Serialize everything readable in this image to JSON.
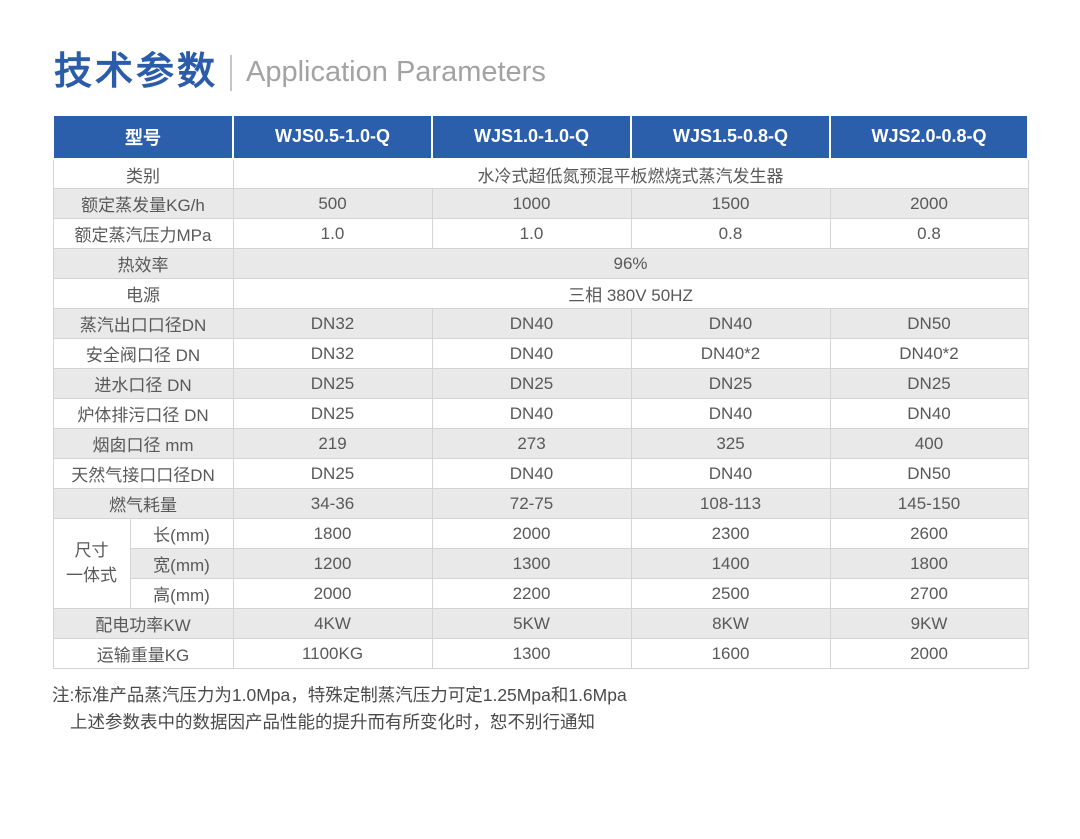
{
  "page": {
    "title_cn": "技术参数",
    "title_en": "Application Parameters"
  },
  "table": {
    "header": [
      "型号",
      "WJS0.5-1.0-Q",
      "WJS1.0-1.0-Q",
      "WJS1.5-0.8-Q",
      "WJS2.0-0.8-Q"
    ],
    "rows": [
      {
        "label": "类别",
        "span": "水冷式超低氮预混平板燃烧式蒸汽发生器"
      },
      {
        "label": "额定蒸发量KG/h",
        "values": [
          "500",
          "1000",
          "1500",
          "2000"
        ]
      },
      {
        "label": "额定蒸汽压力MPa",
        "values": [
          "1.0",
          "1.0",
          "0.8",
          "0.8"
        ]
      },
      {
        "label": "热效率",
        "span": "96%"
      },
      {
        "label": "电源",
        "span": "三相 380V 50HZ"
      },
      {
        "label": "蒸汽出口口径DN",
        "values": [
          "DN32",
          "DN40",
          "DN40",
          "DN50"
        ]
      },
      {
        "label": "安全阀口径 DN",
        "values": [
          "DN32",
          "DN40",
          "DN40*2",
          "DN40*2"
        ]
      },
      {
        "label": "进水口径 DN",
        "values": [
          "DN25",
          "DN25",
          "DN25",
          "DN25"
        ]
      },
      {
        "label": "炉体排污口径 DN",
        "values": [
          "DN25",
          "DN40",
          "DN40",
          "DN40"
        ]
      },
      {
        "label": "烟囱口径 mm",
        "values": [
          "219",
          "273",
          "325",
          "400"
        ]
      },
      {
        "label": "天然气接口口径DN",
        "values": [
          "DN25",
          "DN40",
          "DN40",
          "DN50"
        ]
      },
      {
        "label": "燃气耗量",
        "values": [
          "34-36",
          "72-75",
          "108-113",
          "145-150"
        ]
      },
      {
        "group_label_lines": [
          "尺寸",
          "一体式"
        ],
        "sub_rows": [
          {
            "label": "长(mm)",
            "values": [
              "1800",
              "2000",
              "2300",
              "2600"
            ]
          },
          {
            "label": "宽(mm)",
            "values": [
              "1200",
              "1300",
              "1400",
              "1800"
            ]
          },
          {
            "label": "高(mm)",
            "values": [
              "2000",
              "2200",
              "2500",
              "2700"
            ]
          }
        ]
      },
      {
        "label": "配电功率KW",
        "values": [
          "4KW",
          "5KW",
          "8KW",
          "9KW"
        ]
      },
      {
        "label": "运输重量KG",
        "values": [
          "1100KG",
          "1300",
          "1600",
          "2000"
        ]
      }
    ]
  },
  "notes": [
    "注:标准产品蒸汽压力为1.0Mpa，特殊定制蒸汽压力可定1.25Mpa和1.6Mpa",
    "上述参数表中的数据因产品性能的提升而有所变化时，恕不别行通知"
  ],
  "colors": {
    "header_blue": "#2b5fac",
    "title_blue": "#2a5caa",
    "subtitle_gray": "#a3a3a3",
    "zebra_gray": "#e9e9e9",
    "border_gray": "#d4d4d4",
    "cell_text": "#595959",
    "note_text": "#4a4a4a"
  }
}
